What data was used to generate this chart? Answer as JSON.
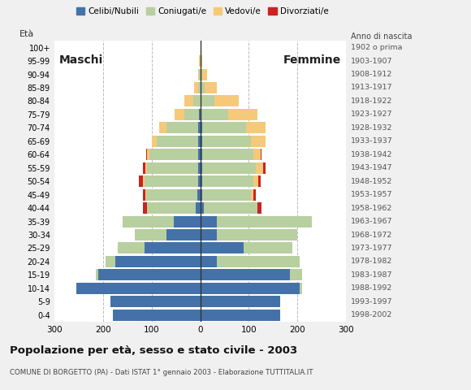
{
  "age_groups": [
    "0-4",
    "5-9",
    "10-14",
    "15-19",
    "20-24",
    "25-29",
    "30-34",
    "35-39",
    "40-44",
    "45-49",
    "50-54",
    "55-59",
    "60-64",
    "65-69",
    "70-74",
    "75-79",
    "80-84",
    "85-89",
    "90-94",
    "95-99",
    "100+"
  ],
  "birth_years": [
    "1998-2002",
    "1993-1997",
    "1988-1992",
    "1983-1987",
    "1978-1982",
    "1973-1977",
    "1968-1972",
    "1963-1967",
    "1958-1962",
    "1953-1957",
    "1948-1952",
    "1943-1947",
    "1938-1942",
    "1933-1937",
    "1928-1932",
    "1923-1927",
    "1918-1922",
    "1913-1917",
    "1908-1912",
    "1903-1907",
    "1902 o prima"
  ],
  "colors": {
    "celibi": "#4472a8",
    "coniugati": "#b8cfa0",
    "vedovi": "#f5c97a",
    "divorziati": "#cc2222"
  },
  "males": {
    "celibi": [
      180,
      185,
      255,
      210,
      175,
      115,
      70,
      55,
      10,
      6,
      5,
      4,
      4,
      4,
      4,
      2,
      0,
      0,
      0,
      0,
      0
    ],
    "coniugati": [
      0,
      0,
      0,
      5,
      20,
      55,
      65,
      105,
      100,
      105,
      110,
      105,
      100,
      85,
      65,
      30,
      15,
      5,
      2,
      0,
      0
    ],
    "vedovi": [
      0,
      0,
      0,
      0,
      0,
      0,
      0,
      0,
      0,
      2,
      3,
      3,
      5,
      10,
      15,
      20,
      18,
      8,
      3,
      2,
      0
    ],
    "divorziati": [
      0,
      0,
      0,
      0,
      0,
      0,
      0,
      0,
      8,
      5,
      8,
      5,
      2,
      0,
      0,
      0,
      0,
      0,
      0,
      0,
      0
    ]
  },
  "females": {
    "celibi": [
      165,
      165,
      205,
      185,
      35,
      90,
      35,
      35,
      8,
      5,
      5,
      4,
      4,
      4,
      4,
      2,
      0,
      0,
      0,
      0,
      0
    ],
    "coniugati": [
      0,
      0,
      5,
      25,
      170,
      100,
      165,
      195,
      110,
      100,
      105,
      110,
      105,
      100,
      90,
      55,
      30,
      10,
      5,
      2,
      0
    ],
    "vedovi": [
      0,
      0,
      0,
      0,
      0,
      0,
      0,
      0,
      0,
      5,
      10,
      15,
      15,
      30,
      40,
      60,
      50,
      25,
      10,
      3,
      2
    ],
    "divorziati": [
      0,
      0,
      0,
      0,
      0,
      0,
      0,
      0,
      8,
      5,
      5,
      5,
      2,
      0,
      0,
      0,
      0,
      0,
      0,
      0,
      0
    ]
  },
  "xlim": 300,
  "xticks": [
    -300,
    -200,
    -100,
    0,
    100,
    200,
    300
  ],
  "title": "Popolazione per età, sesso e stato civile - 2003",
  "subtitle": "COMUNE DI BORGETTO (PA) - Dati ISTAT 1° gennaio 2003 - Elaborazione TUTTITALIA.IT",
  "age_label": "Età",
  "birth_label": "Anno di nascita",
  "maschi_label": "Maschi",
  "femmine_label": "Femmine",
  "legend_labels": [
    "Celibi/Nubili",
    "Coniugati/e",
    "Vedovi/e",
    "Divorziati/e"
  ],
  "bg_color": "#f0f0f0",
  "plot_bg": "#ffffff"
}
